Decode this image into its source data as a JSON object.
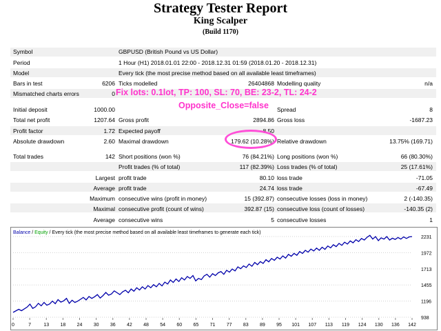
{
  "report": {
    "title": "Strategy Tester Report",
    "subtitle": "King Scalper",
    "build": "(Build 1170)"
  },
  "info": {
    "symbol": {
      "label": "Symbol",
      "value": "GBPUSD (British Pound vs US Dollar)"
    },
    "period": {
      "label": "Period",
      "value": "1 Hour (H1) 2018.01.01 22:00 - 2018.12.31 01:59 (2018.01.20 - 2018.12.31)"
    },
    "model": {
      "label": "Model",
      "value": "Every tick (the most precise method based on all available least timeframes)"
    },
    "bars": {
      "label": "Bars in test",
      "value": "6206"
    },
    "ticks": {
      "label": "Ticks modelled",
      "value": "26404868"
    },
    "quality": {
      "label": "Modelling quality",
      "value": "n/a"
    },
    "mismatch": {
      "label": "Mismatched charts errors",
      "value": "0"
    }
  },
  "stats": {
    "initial_deposit": {
      "label": "Initial deposit",
      "value": "1000.00"
    },
    "spread": {
      "label": "Spread",
      "value": "8"
    },
    "net_profit": {
      "label": "Total net profit",
      "value": "1207.64"
    },
    "gross_profit": {
      "label": "Gross profit",
      "value": "2894.86"
    },
    "gross_loss": {
      "label": "Gross loss",
      "value": "-1687.23"
    },
    "profit_factor": {
      "label": "Profit factor",
      "value": "1.72"
    },
    "expected_payoff": {
      "label": "Expected payoff",
      "value": "8.50"
    },
    "abs_drawdown": {
      "label": "Absolute drawdown",
      "value": "2.60"
    },
    "max_drawdown": {
      "label": "Maximal drawdown",
      "value": "179.62 (10.28%)"
    },
    "rel_drawdown": {
      "label": "Relative drawdown",
      "value": "13.75% (169.71)"
    },
    "total_trades": {
      "label": "Total trades",
      "value": "142"
    },
    "short_positions": {
      "label": "Short positions (won %)",
      "value": "76 (84.21%)"
    },
    "long_positions": {
      "label": "Long positions (won %)",
      "value": "66 (80.30%)"
    },
    "profit_trades": {
      "label": "Profit trades (% of total)",
      "value": "117 (82.39%)"
    },
    "loss_trades": {
      "label": "Loss trades (% of total)",
      "value": "25 (17.61%)"
    },
    "largest_label": "Largest",
    "largest_profit": {
      "label": "profit trade",
      "value": "80.10"
    },
    "largest_loss": {
      "label": "loss trade",
      "value": "-71.05"
    },
    "average_label": "Average",
    "average_profit": {
      "label": "profit trade",
      "value": "24.74"
    },
    "average_loss": {
      "label": "loss trade",
      "value": "-67.49"
    },
    "maximum_label": "Maximum",
    "max_cons_wins": {
      "label": "consecutive wins (profit in money)",
      "value": "15 (392.87)"
    },
    "max_cons_losses": {
      "label": "consecutive losses (loss in money)",
      "value": "2 (-140.35)"
    },
    "maximal_label": "Maximal",
    "maximal_cons_profit": {
      "label": "consecutive profit (count of wins)",
      "value": "392.87 (15)"
    },
    "maximal_cons_loss": {
      "label": "consecutive loss (count of losses)",
      "value": "-140.35 (2)"
    },
    "average2_label": "Average",
    "avg_cons_wins": {
      "label": "consecutive wins",
      "value": "5"
    },
    "avg_cons_losses": {
      "label": "consecutive losses",
      "value": "1"
    }
  },
  "annotation": {
    "line1": "Fix lots: 0.1lot, TP: 100, SL: 70, BE: 23-2, TL: 24-2",
    "line2": "Opposite_Close=false",
    "color": "#ff33cc"
  },
  "chart_legend": {
    "balance": "Balance",
    "sep1": " / ",
    "equity": "Equity",
    "rest": " / Every tick (the most precise method based on all available least timeframes to generate each tick)"
  },
  "chart_data": {
    "type": "line",
    "x_ticks": [
      "0",
      "7",
      "13",
      "18",
      "24",
      "30",
      "36",
      "42",
      "48",
      "54",
      "60",
      "65",
      "71",
      "77",
      "83",
      "89",
      "95",
      "101",
      "107",
      "113",
      "119",
      "124",
      "130",
      "136",
      "142"
    ],
    "y_ticks": [
      "2231",
      "1972",
      "1713",
      "1455",
      "1196",
      "938"
    ],
    "ylim": [
      938,
      2231
    ],
    "xlim": [
      0,
      142
    ],
    "series": [
      {
        "name": "Balance",
        "color": "#0000aa",
        "x": [
          0,
          2,
          3,
          5,
          6,
          7,
          8,
          9,
          10,
          11,
          12,
          13,
          14,
          15,
          16,
          17,
          18,
          19,
          20,
          21,
          22,
          23,
          24,
          25,
          26,
          27,
          28,
          29,
          30,
          31,
          32,
          33,
          34,
          35,
          36,
          37,
          38,
          39,
          40,
          41,
          42,
          43,
          44,
          45,
          46,
          47,
          48,
          49,
          50,
          51,
          52,
          53,
          54,
          55,
          56,
          57,
          58,
          59,
          60,
          61,
          62,
          63,
          64,
          65,
          66,
          67,
          68,
          69,
          70,
          71,
          72,
          73,
          74,
          75,
          76,
          77,
          78,
          79,
          80,
          81,
          82,
          83,
          84,
          85,
          86,
          87,
          88,
          89,
          90,
          91,
          92,
          93,
          94,
          95,
          96,
          97,
          98,
          99,
          100,
          101,
          102,
          103,
          104,
          105,
          106,
          107,
          108,
          109,
          110,
          111,
          112,
          113,
          114,
          115,
          116,
          117,
          118,
          119,
          120,
          121,
          122,
          123,
          124,
          125,
          126,
          127,
          128,
          129,
          130,
          131,
          132,
          133,
          134,
          135,
          136,
          137,
          138,
          139,
          140,
          141,
          142
        ],
        "values": [
          1015,
          1065,
          1042,
          1100,
          1148,
          1080,
          1105,
          1160,
          1120,
          1175,
          1130,
          1150,
          1195,
          1155,
          1220,
          1180,
          1200,
          1240,
          1160,
          1210,
          1175,
          1195,
          1225,
          1255,
          1215,
          1270,
          1240,
          1265,
          1300,
          1245,
          1285,
          1335,
          1290,
          1310,
          1360,
          1330,
          1300,
          1345,
          1370,
          1330,
          1390,
          1355,
          1410,
          1375,
          1425,
          1390,
          1445,
          1410,
          1460,
          1425,
          1480,
          1440,
          1500,
          1470,
          1535,
          1495,
          1550,
          1510,
          1570,
          1535,
          1590,
          1560,
          1605,
          1520,
          1560,
          1540,
          1600,
          1625,
          1580,
          1635,
          1605,
          1650,
          1670,
          1625,
          1690,
          1660,
          1710,
          1680,
          1745,
          1715,
          1760,
          1735,
          1790,
          1755,
          1815,
          1780,
          1830,
          1800,
          1860,
          1825,
          1880,
          1850,
          1900,
          1870,
          1920,
          1885,
          1945,
          1915,
          1960,
          1930,
          1990,
          1960,
          2010,
          1980,
          2030,
          2000,
          2045,
          2010,
          2060,
          2025,
          2080,
          2050,
          2100,
          2070,
          2120,
          2090,
          2140,
          2110,
          2160,
          2130,
          2180,
          2150,
          2200,
          2175,
          2220,
          2250,
          2190,
          2230,
          2165,
          2210,
          2190,
          2230,
          2175,
          2205,
          2185,
          2215,
          2190,
          2225,
          2200,
          2225,
          2230
        ]
      }
    ]
  }
}
